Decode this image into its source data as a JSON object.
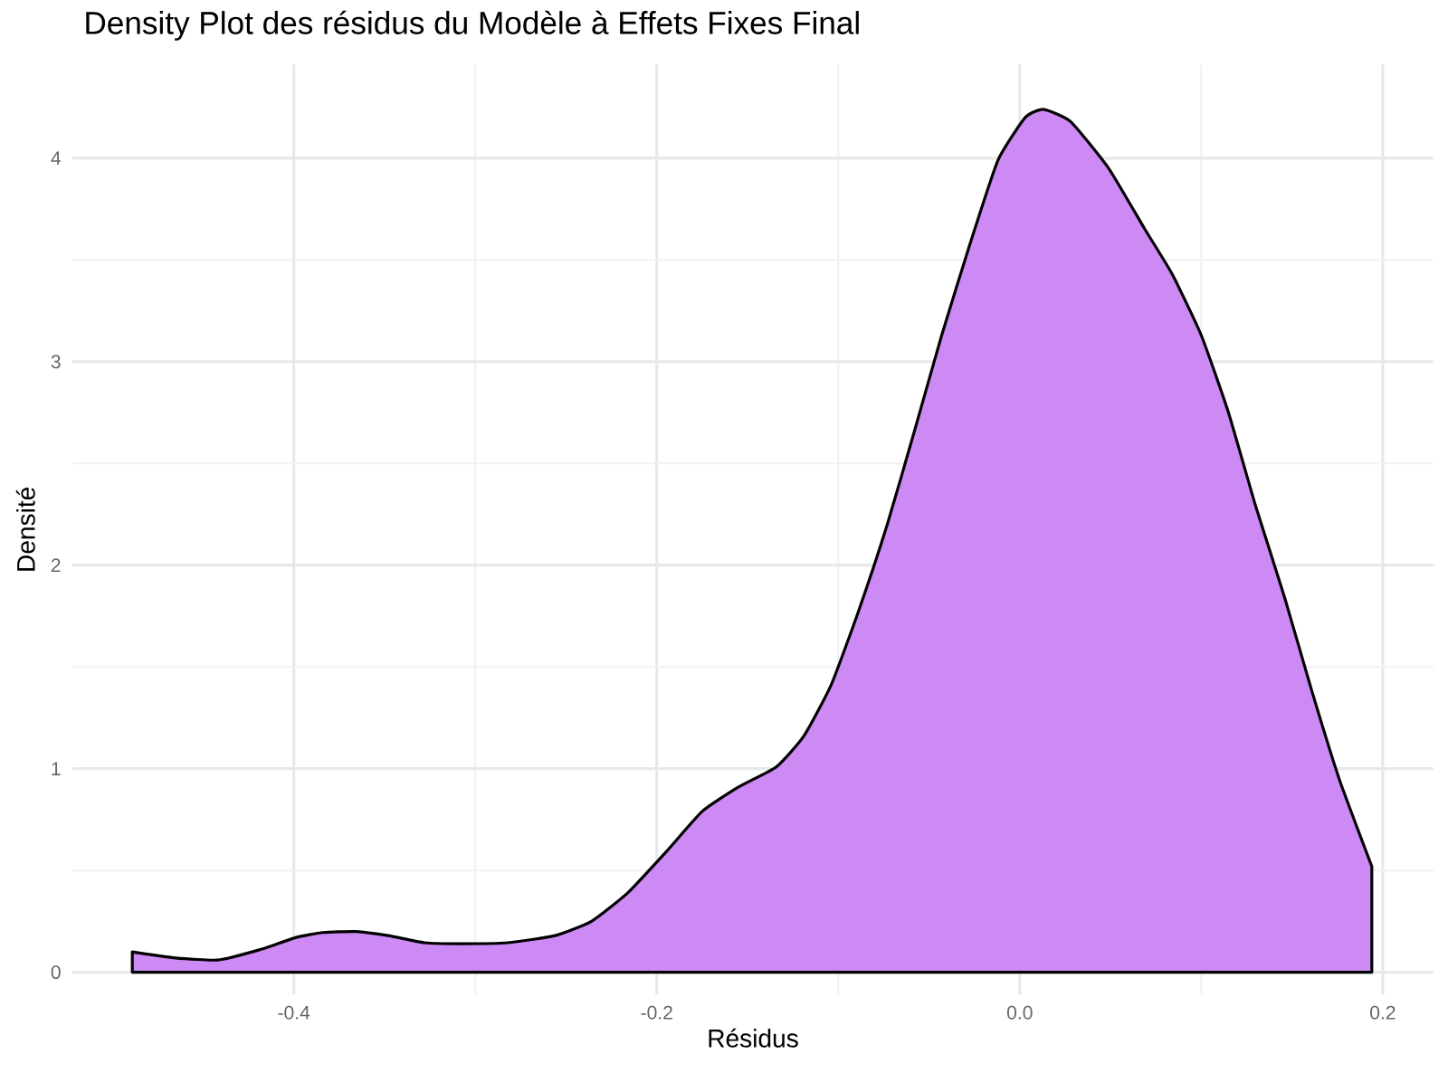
{
  "chart_data": {
    "type": "area",
    "title": "Density Plot des résidus du Modèle à Effets Fixes Final",
    "xlabel": "Résidus",
    "ylabel": "Densité",
    "xlim": [
      -0.522,
      0.228
    ],
    "ylim": [
      -0.11,
      4.46
    ],
    "xticks": [
      -0.4,
      -0.2,
      {
        "value": 0,
        "label": "0.0"
      },
      0.2
    ],
    "yticks": [
      0,
      1,
      2,
      3,
      4
    ],
    "grid": true,
    "series": [
      {
        "color": "#cd8af4",
        "x": [
          -0.489,
          -0.465,
          -0.442,
          -0.419,
          -0.399,
          -0.384,
          -0.366,
          -0.348,
          -0.328,
          -0.308,
          -0.282,
          -0.256,
          -0.236,
          -0.216,
          -0.195,
          -0.175,
          -0.155,
          -0.134,
          -0.119,
          -0.104,
          -0.089,
          -0.073,
          -0.058,
          -0.043,
          -0.027,
          -0.012,
          0.003,
          0.013,
          0.028,
          0.049,
          0.069,
          0.084,
          0.1,
          0.115,
          0.13,
          0.146,
          0.161,
          0.176,
          0.194
        ],
        "values": [
          0.1,
          0.07,
          0.06,
          0.11,
          0.17,
          0.195,
          0.2,
          0.18,
          0.145,
          0.14,
          0.145,
          0.18,
          0.25,
          0.39,
          0.59,
          0.79,
          0.91,
          1.01,
          1.16,
          1.41,
          1.77,
          2.2,
          2.66,
          3.13,
          3.59,
          3.99,
          4.2,
          4.24,
          4.18,
          3.95,
          3.65,
          3.43,
          3.13,
          2.75,
          2.29,
          1.84,
          1.38,
          0.95,
          0.52
        ]
      }
    ]
  }
}
